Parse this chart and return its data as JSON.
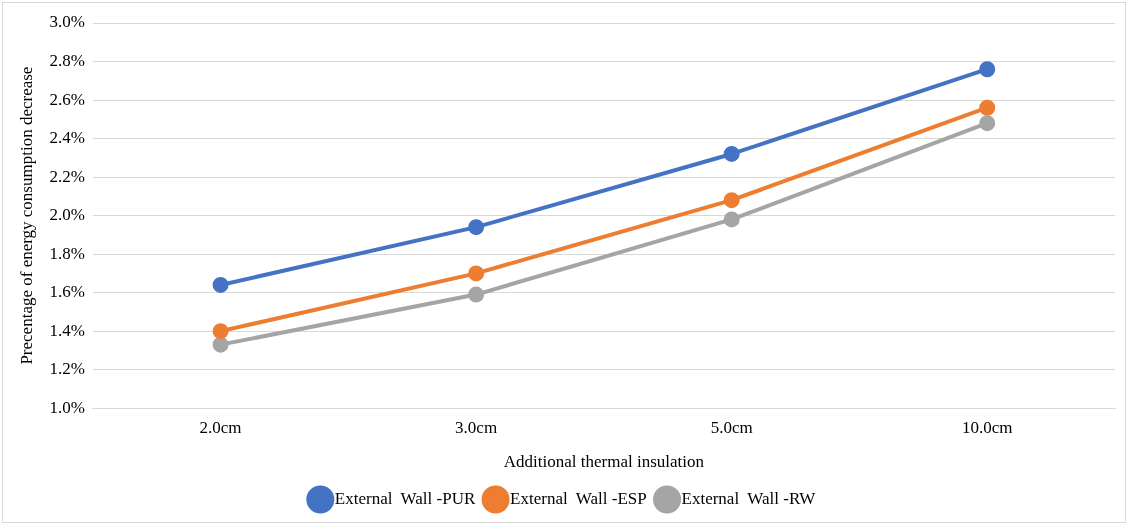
{
  "chart_data": {
    "type": "line",
    "xlabel": "Additional thermal insulation",
    "ylabel": "Precentage of energy consumption decrease",
    "categories": [
      "2.0cm",
      "3.0cm",
      "5.0cm",
      "10.0cm"
    ],
    "series": [
      {
        "name": "External  Wall -PUR",
        "color": "#4472c4",
        "values": [
          1.64,
          1.94,
          2.32,
          2.76
        ]
      },
      {
        "name": "External  Wall -ESP",
        "color": "#ed7d31",
        "values": [
          1.4,
          1.7,
          2.08,
          2.56
        ]
      },
      {
        "name": "External  Wall -RW",
        "color": "#a5a5a5",
        "values": [
          1.33,
          1.59,
          1.98,
          2.48
        ]
      }
    ],
    "ylim": [
      1.0,
      3.0
    ],
    "yticks": [
      {
        "value": 1.0,
        "label": "1.0%"
      },
      {
        "value": 1.2,
        "label": "1.2%"
      },
      {
        "value": 1.4,
        "label": "1.4%"
      },
      {
        "value": 1.6,
        "label": "1.6%"
      },
      {
        "value": 1.8,
        "label": "1.8%"
      },
      {
        "value": 2.0,
        "label": "2.0%"
      },
      {
        "value": 2.2,
        "label": "2.2%"
      },
      {
        "value": 2.4,
        "label": "2.4%"
      },
      {
        "value": 2.6,
        "label": "2.6%"
      },
      {
        "value": 2.8,
        "label": "2.8%"
      },
      {
        "value": 3.0,
        "label": "3.0%"
      }
    ],
    "grid": "y",
    "legend": "bottom",
    "marker": "circle",
    "line_style": "solid"
  }
}
